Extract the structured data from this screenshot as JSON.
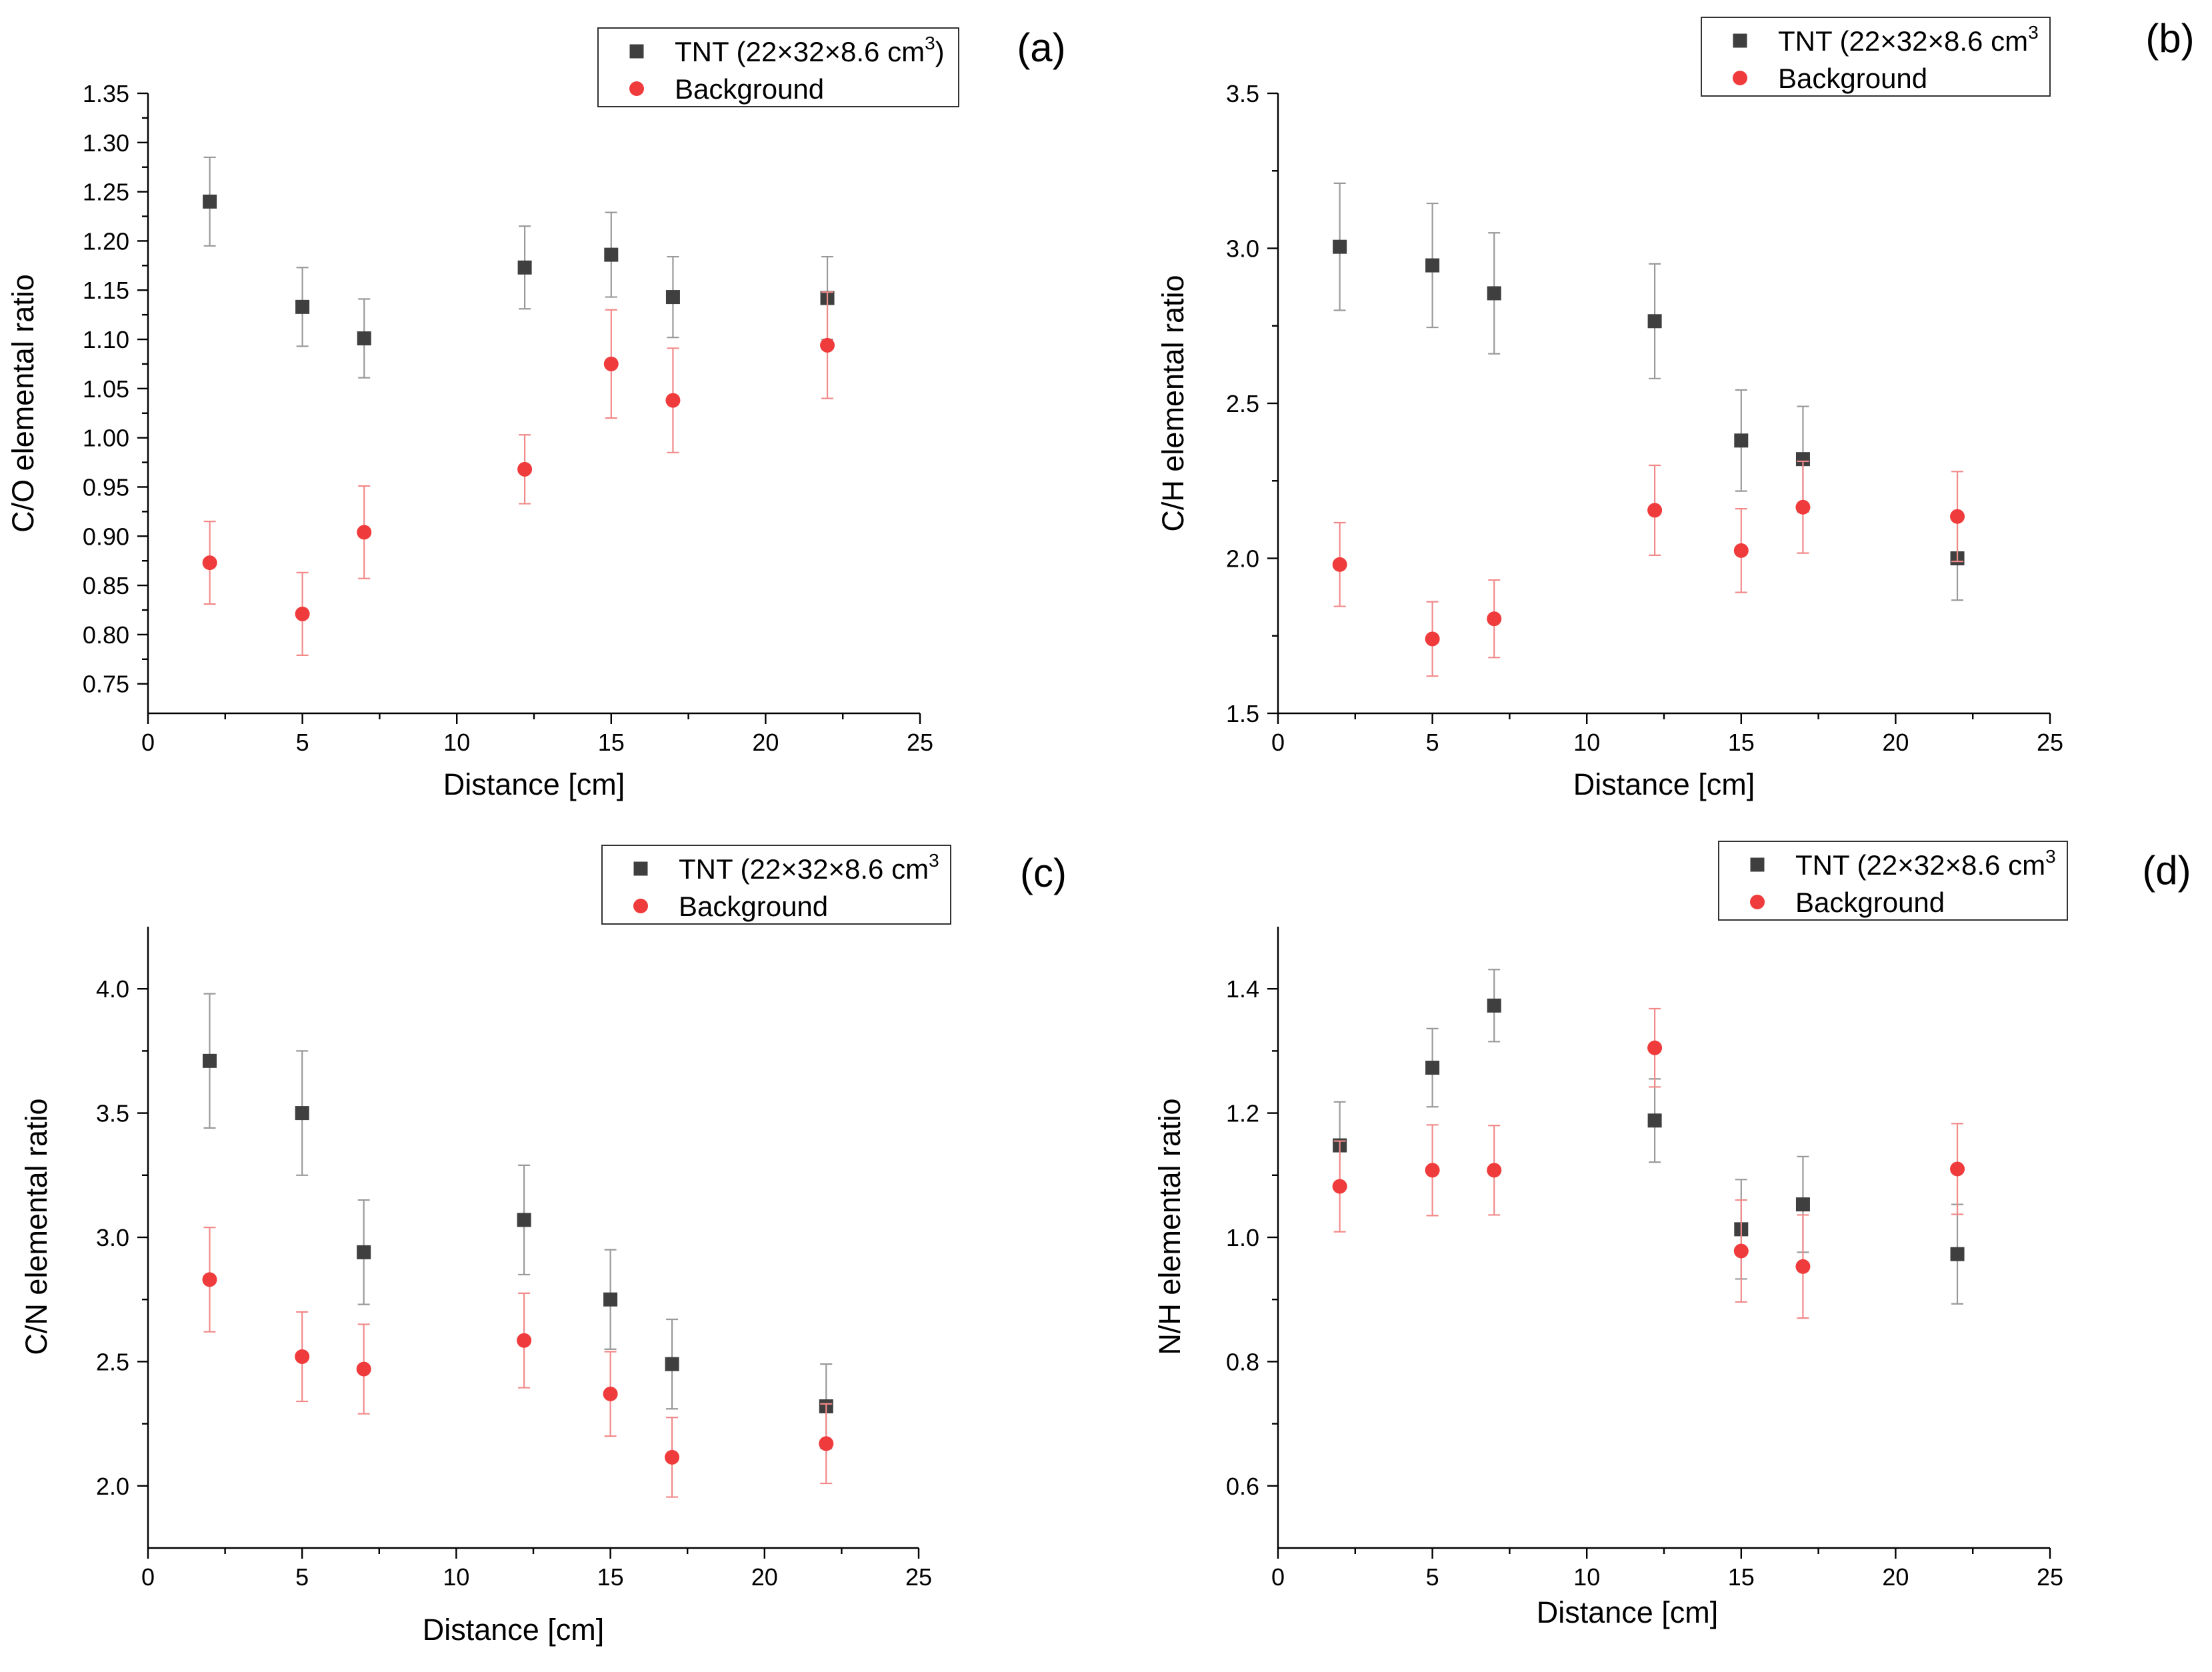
{
  "colors": {
    "tnt": "#3f3f3f",
    "tnt_err": "#9a9a9a",
    "background": "#ef3b3b",
    "background_err": "#f28a8a"
  },
  "chart_data": [
    {
      "type": "scatter",
      "panel": "(a)",
      "xlabel": "Distance [cm]",
      "ylabel": "C/O elemental ratio",
      "xlim": [
        0,
        25
      ],
      "ylim": [
        0.72,
        1.35
      ],
      "xticks": [
        "0",
        "5",
        "10",
        "15",
        "20",
        "25"
      ],
      "yticks": [
        "0.75",
        "0.80",
        "0.85",
        "0.90",
        "0.95",
        "1.00",
        "1.05",
        "1.10",
        "1.15",
        "1.20",
        "1.25",
        "1.30",
        "1.35"
      ],
      "legend_position": "top-right",
      "series": [
        {
          "name": "TNT (22×32×8.6 cm³)",
          "marker": "square",
          "x": [
            2,
            5,
            7,
            12.2,
            15,
            17,
            22
          ],
          "y": [
            1.24,
            1.133,
            1.101,
            1.173,
            1.186,
            1.143,
            1.142
          ],
          "err": [
            0.045,
            0.04,
            0.04,
            0.042,
            0.043,
            0.041,
            0.042
          ]
        },
        {
          "name": "Background",
          "marker": "circle",
          "x": [
            2,
            5,
            7,
            12.2,
            15,
            17,
            22
          ],
          "y": [
            0.873,
            0.821,
            0.904,
            0.968,
            1.075,
            1.038,
            1.094
          ],
          "err": [
            0.042,
            0.042,
            0.047,
            0.035,
            0.055,
            0.053,
            0.054
          ]
        }
      ]
    },
    {
      "type": "scatter",
      "panel": "(b)",
      "xlabel": "Distance [cm]",
      "ylabel": "C/H elemental ratio",
      "xlim": [
        0,
        25
      ],
      "ylim": [
        1.5,
        3.5
      ],
      "xticks": [
        "0",
        "5",
        "10",
        "15",
        "20",
        "25"
      ],
      "yticks": [
        "1.5",
        "2.0",
        "2.5",
        "3.0",
        "3.5"
      ],
      "legend_position": "top-right",
      "series": [
        {
          "name": "TNT (22×32×8.6 cm³",
          "marker": "square",
          "x": [
            2,
            5,
            7,
            12.2,
            15,
            17,
            22
          ],
          "y": [
            3.005,
            2.945,
            2.855,
            2.765,
            2.38,
            2.32,
            2.0
          ],
          "err": [
            0.205,
            0.2,
            0.195,
            0.185,
            0.163,
            0.17,
            0.135
          ]
        },
        {
          "name": "Background",
          "marker": "circle",
          "x": [
            2,
            5,
            7,
            12.2,
            15,
            17,
            22
          ],
          "y": [
            1.98,
            1.74,
            1.805,
            2.155,
            2.025,
            2.165,
            2.135
          ],
          "err": [
            0.135,
            0.12,
            0.125,
            0.145,
            0.135,
            0.148,
            0.145
          ]
        }
      ]
    },
    {
      "type": "scatter",
      "panel": "(c)",
      "xlabel": "Distance [cm]",
      "ylabel": "C/N elemental ratio",
      "xlim": [
        0,
        25
      ],
      "ylim": [
        1.75,
        4.25
      ],
      "xticks": [
        "0",
        "5",
        "10",
        "15",
        "20",
        "25"
      ],
      "yticks": [
        "2.0",
        "2.5",
        "3.0",
        "3.5",
        "4.0"
      ],
      "legend_position": "top-right",
      "series": [
        {
          "name": "TNT (22×32×8.6 cm³",
          "marker": "square",
          "x": [
            2,
            5,
            7,
            12.2,
            15,
            17,
            22
          ],
          "y": [
            3.71,
            3.5,
            2.94,
            3.07,
            2.75,
            2.49,
            2.32
          ],
          "err": [
            0.27,
            0.25,
            0.21,
            0.22,
            0.2,
            0.18,
            0.17
          ]
        },
        {
          "name": "Background",
          "marker": "circle",
          "x": [
            2,
            5,
            7,
            12.2,
            15,
            17,
            22
          ],
          "y": [
            2.83,
            2.52,
            2.47,
            2.585,
            2.37,
            2.115,
            2.17
          ],
          "err": [
            0.21,
            0.18,
            0.18,
            0.19,
            0.17,
            0.16,
            0.16
          ]
        }
      ]
    },
    {
      "type": "scatter",
      "panel": "(d)",
      "xlabel": "Distance [cm]",
      "ylabel": "N/H elemental ratio",
      "xlim": [
        0,
        25
      ],
      "ylim": [
        0.5,
        1.5
      ],
      "xticks": [
        "0",
        "5",
        "10",
        "15",
        "20",
        "25"
      ],
      "yticks": [
        "0.6",
        "0.8",
        "1.0",
        "1.2",
        "1.4"
      ],
      "legend_position": "top-right",
      "series": [
        {
          "name": "TNT (22×32×8.6 cm³",
          "marker": "square",
          "x": [
            2,
            5,
            7,
            12.2,
            15,
            17,
            22
          ],
          "y": [
            1.148,
            1.273,
            1.373,
            1.188,
            1.013,
            1.053,
            0.973
          ],
          "err": [
            0.07,
            0.063,
            0.058,
            0.067,
            0.08,
            0.077,
            0.08
          ]
        },
        {
          "name": "Background",
          "marker": "circle",
          "x": [
            2,
            5,
            7,
            12.2,
            15,
            17,
            22
          ],
          "y": [
            1.082,
            1.108,
            1.108,
            1.305,
            0.978,
            0.953,
            1.11
          ],
          "err": [
            0.073,
            0.073,
            0.072,
            0.063,
            0.082,
            0.083,
            0.073
          ]
        }
      ]
    }
  ]
}
